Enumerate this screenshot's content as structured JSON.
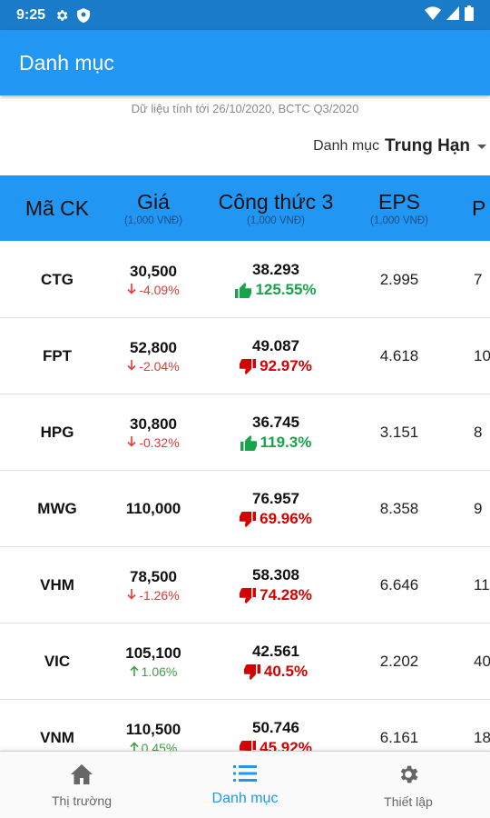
{
  "status_bar": {
    "time": "9:25"
  },
  "app_bar": {
    "title": "Danh mục"
  },
  "meta_text": "Dữ liệu tính tới 26/10/2020, BCTC Q3/2020",
  "portfolio_selector": {
    "label": "Danh mục",
    "value": "Trung Hạn"
  },
  "columns": [
    {
      "label": "Mã CK",
      "unit": ""
    },
    {
      "label": "Giá",
      "unit": "(1,000 VNĐ)"
    },
    {
      "label": "Công thức 3",
      "unit": "(1,000 VNĐ)"
    },
    {
      "label": "EPS",
      "unit": "(1,000 VNĐ)"
    },
    {
      "label": "P",
      "unit": ""
    }
  ],
  "rows": [
    {
      "code": "CTG",
      "price": "30,500",
      "change": "-4.09%",
      "change_dir": "down",
      "formula_value": "38.293",
      "formula_pct": "125.55%",
      "formula_sentiment": "good",
      "eps": "2.995",
      "p": "7"
    },
    {
      "code": "FPT",
      "price": "52,800",
      "change": "-2.04%",
      "change_dir": "down",
      "formula_value": "49.087",
      "formula_pct": "92.97%",
      "formula_sentiment": "bad",
      "eps": "4.618",
      "p": "10"
    },
    {
      "code": "HPG",
      "price": "30,800",
      "change": "-0.32%",
      "change_dir": "down",
      "formula_value": "36.745",
      "formula_pct": "119.3%",
      "formula_sentiment": "good",
      "eps": "3.151",
      "p": "8"
    },
    {
      "code": "MWG",
      "price": "110,000",
      "change": "",
      "change_dir": "none",
      "formula_value": "76.957",
      "formula_pct": "69.96%",
      "formula_sentiment": "bad",
      "eps": "8.358",
      "p": "9"
    },
    {
      "code": "VHM",
      "price": "78,500",
      "change": "-1.26%",
      "change_dir": "down",
      "formula_value": "58.308",
      "formula_pct": "74.28%",
      "formula_sentiment": "bad",
      "eps": "6.646",
      "p": "11"
    },
    {
      "code": "VIC",
      "price": "105,100",
      "change": "1.06%",
      "change_dir": "up",
      "formula_value": "42.561",
      "formula_pct": "40.5%",
      "formula_sentiment": "bad",
      "eps": "2.202",
      "p": "40"
    },
    {
      "code": "VNM",
      "price": "110,500",
      "change": "0.45%",
      "change_dir": "up",
      "formula_value": "50.746",
      "formula_pct": "45.92%",
      "formula_sentiment": "bad",
      "eps": "6.161",
      "p": "18"
    }
  ],
  "bottom_nav": [
    {
      "label": "Thị trường",
      "icon": "home-icon",
      "active": false
    },
    {
      "label": "Danh mục",
      "icon": "list-icon",
      "active": true
    },
    {
      "label": "Thiết lập",
      "icon": "gear-icon",
      "active": false
    }
  ],
  "colors": {
    "primary": "#2196f3",
    "status_bar": "#1a7bc8",
    "up": "#43a047",
    "down": "#e53935",
    "good": "#17a34a",
    "bad": "#d50000"
  }
}
